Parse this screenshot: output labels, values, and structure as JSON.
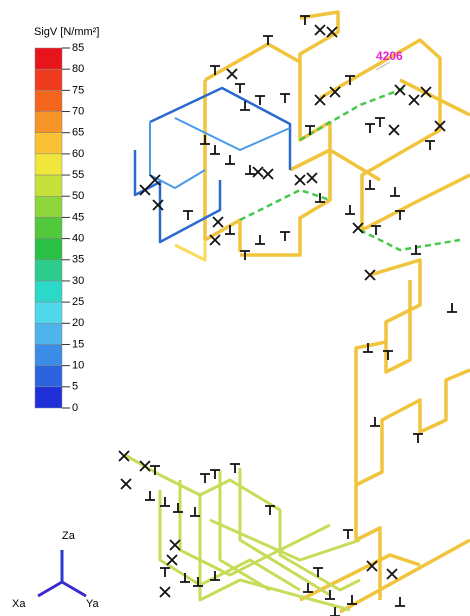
{
  "legend": {
    "title": "SigV [N/mm²]",
    "labels": [
      85,
      80,
      75,
      70,
      65,
      60,
      55,
      50,
      45,
      40,
      35,
      30,
      25,
      20,
      15,
      10,
      5,
      0
    ],
    "colors": [
      "#e8141c",
      "#f03c1e",
      "#f4661e",
      "#f79428",
      "#f8c234",
      "#f0e63c",
      "#c8e03c",
      "#8ed63c",
      "#52c83c",
      "#2cc046",
      "#2ccc8c",
      "#2cd8c8",
      "#50d8ea",
      "#50b4ec",
      "#3a8ce6",
      "#2c64e0",
      "#2030d8"
    ]
  },
  "node_label": "4206",
  "axes": {
    "z": "Za",
    "x": "Xa",
    "y": "Ya"
  }
}
